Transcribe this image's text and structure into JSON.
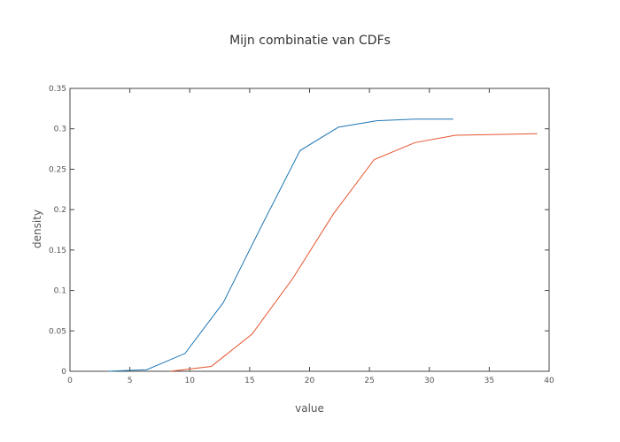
{
  "chart_data": {
    "type": "line",
    "title": "Mijn combinatie van CDFs",
    "xlabel": "value",
    "ylabel": "density",
    "xlim": [
      0,
      40
    ],
    "ylim": [
      0,
      0.35
    ],
    "xticks": [
      0,
      5,
      10,
      15,
      20,
      25,
      30,
      35,
      40
    ],
    "yticks": [
      0,
      0.05,
      0.1,
      0.15,
      0.2,
      0.25,
      0.3,
      0.35
    ],
    "xtick_labels": [
      "0",
      "5",
      "10",
      "15",
      "20",
      "25",
      "30",
      "35",
      "40"
    ],
    "ytick_labels": [
      "0",
      "0.05",
      "0.1",
      "0.15",
      "0.2",
      "0.25",
      "0.3",
      "0.35"
    ],
    "grid": false,
    "legend": "none",
    "series": [
      {
        "color": "#1f77b4",
        "x": [
          3.2,
          6.4,
          9.6,
          12.8,
          16.0,
          19.2,
          22.4,
          25.6,
          28.8,
          32.0
        ],
        "y": [
          0.0,
          0.002,
          0.022,
          0.085,
          0.18,
          0.273,
          0.302,
          0.31,
          0.312,
          0.312
        ]
      },
      {
        "color": "#e6522c",
        "x": [
          8.4,
          11.8,
          15.2,
          18.6,
          22.0,
          25.4,
          28.8,
          32.2,
          35.6,
          39.0
        ],
        "y": [
          0.0,
          0.006,
          0.046,
          0.115,
          0.195,
          0.262,
          0.283,
          0.292,
          0.293,
          0.294
        ]
      }
    ]
  }
}
